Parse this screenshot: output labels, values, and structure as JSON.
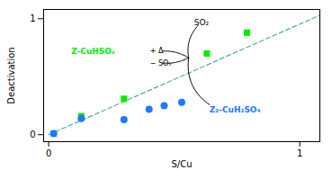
{
  "chart_data": {
    "type": "scatter",
    "xlabel": "S/Cu",
    "ylabel": "Deactivation",
    "xlim": [
      -0.02,
      1.08
    ],
    "ylim": [
      -0.06,
      1.08
    ],
    "xticks": [
      0,
      1
    ],
    "yticks": [
      0,
      1
    ],
    "grid": false,
    "series": [
      {
        "type": "line",
        "x": [
          0.0,
          1.08
        ],
        "values": [
          0.0,
          1.03
        ],
        "color": "#55aaaa",
        "line_style": "dashed"
      },
      {
        "type": "scatter",
        "x": [
          0.02,
          0.13,
          0.3,
          0.63,
          0.79
        ],
        "values": [
          0.01,
          0.16,
          0.31,
          0.7,
          0.88
        ],
        "color": "#00ee00",
        "marker": "square"
      },
      {
        "type": "scatter",
        "x": [
          0.02,
          0.13,
          0.3,
          0.4,
          0.46,
          0.53
        ],
        "values": [
          0.01,
          0.14,
          0.13,
          0.22,
          0.25,
          0.28
        ],
        "color": "#2277ff",
        "marker": "circle"
      }
    ],
    "annotations": [
      {
        "text": "Z-CuHSOₓ",
        "color": "#00ee00"
      },
      {
        "text": "+ Δ"
      },
      {
        "text": "− SOₓ"
      },
      {
        "text": "SO₂"
      },
      {
        "text": "Z₂-CuH₂SO₄",
        "color": "#2277ff"
      }
    ]
  }
}
